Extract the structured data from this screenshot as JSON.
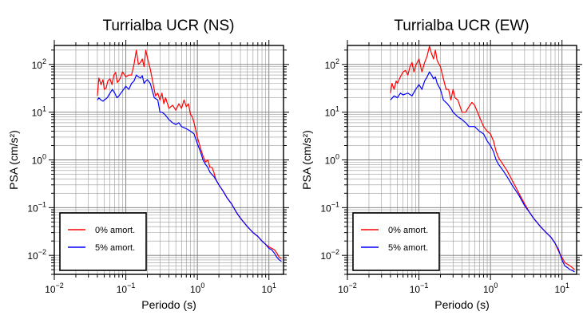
{
  "chart_data": [
    {
      "type": "line",
      "title": "Turrialba UCR (NS)",
      "xlabel": "Periodo (s)",
      "ylabel": "PSA (cm/s²)",
      "xscale": "log",
      "yscale": "log",
      "xlim": [
        0.01,
        16
      ],
      "ylim": [
        0.004,
        250
      ],
      "grid": true,
      "legend_position": "bottom-left",
      "x_ticks": [
        {
          "value": 0.01,
          "base": "10",
          "exp": "−2"
        },
        {
          "value": 0.1,
          "base": "10",
          "exp": "−1"
        },
        {
          "value": 1,
          "base": "10",
          "exp": "0"
        },
        {
          "value": 10,
          "base": "10",
          "exp": "1"
        }
      ],
      "y_ticks": [
        {
          "value": 0.01,
          "base": "10",
          "exp": "−2"
        },
        {
          "value": 0.1,
          "base": "10",
          "exp": "−1"
        },
        {
          "value": 1,
          "base": "10",
          "exp": "0"
        },
        {
          "value": 10,
          "base": "10",
          "exp": "1"
        },
        {
          "value": 100,
          "base": "10",
          "exp": "2"
        }
      ],
      "series": [
        {
          "name": "0% amort.",
          "color": "#ff0000",
          "points": [
            [
              0.04,
              22
            ],
            [
              0.042,
              52
            ],
            [
              0.045,
              38
            ],
            [
              0.048,
              48
            ],
            [
              0.05,
              30
            ],
            [
              0.053,
              32
            ],
            [
              0.056,
              45
            ],
            [
              0.06,
              50
            ],
            [
              0.064,
              38
            ],
            [
              0.068,
              60
            ],
            [
              0.072,
              68
            ],
            [
              0.076,
              42
            ],
            [
              0.08,
              46
            ],
            [
              0.085,
              55
            ],
            [
              0.09,
              70
            ],
            [
              0.1,
              55
            ],
            [
              0.11,
              60
            ],
            [
              0.12,
              60
            ],
            [
              0.13,
              100
            ],
            [
              0.14,
              200
            ],
            [
              0.15,
              100
            ],
            [
              0.16,
              110
            ],
            [
              0.17,
              130
            ],
            [
              0.18,
              90
            ],
            [
              0.19,
              200
            ],
            [
              0.2,
              140
            ],
            [
              0.22,
              80
            ],
            [
              0.24,
              40
            ],
            [
              0.26,
              22
            ],
            [
              0.28,
              25
            ],
            [
              0.3,
              18
            ],
            [
              0.32,
              25
            ],
            [
              0.34,
              15
            ],
            [
              0.36,
              20
            ],
            [
              0.4,
              12
            ],
            [
              0.45,
              14
            ],
            [
              0.5,
              11
            ],
            [
              0.55,
              15
            ],
            [
              0.6,
              12
            ],
            [
              0.65,
              18
            ],
            [
              0.7,
              13
            ],
            [
              0.75,
              15
            ],
            [
              0.8,
              9
            ],
            [
              0.85,
              8
            ],
            [
              0.9,
              6
            ],
            [
              1.0,
              3
            ],
            [
              1.1,
              1.8
            ],
            [
              1.2,
              1.2
            ],
            [
              1.3,
              0.9
            ],
            [
              1.4,
              1.0
            ],
            [
              1.5,
              0.7
            ],
            [
              1.6,
              0.7
            ],
            [
              1.7,
              0.55
            ],
            [
              1.8,
              0.4
            ],
            [
              2.0,
              0.3
            ],
            [
              2.3,
              0.22
            ],
            [
              2.6,
              0.16
            ],
            [
              3.0,
              0.12
            ],
            [
              3.5,
              0.08
            ],
            [
              4.0,
              0.06
            ],
            [
              5.0,
              0.04
            ],
            [
              6.0,
              0.03
            ],
            [
              7.0,
              0.025
            ],
            [
              8.0,
              0.02
            ],
            [
              9.0,
              0.017
            ],
            [
              10,
              0.015
            ],
            [
              11,
              0.014
            ],
            [
              12,
              0.013
            ],
            [
              13,
              0.011
            ],
            [
              14,
              0.009
            ],
            [
              15,
              0.0085
            ]
          ]
        },
        {
          "name": "5% amort.",
          "color": "#0000ff",
          "points": [
            [
              0.04,
              18
            ],
            [
              0.042,
              20
            ],
            [
              0.045,
              18
            ],
            [
              0.048,
              17
            ],
            [
              0.05,
              18
            ],
            [
              0.055,
              20
            ],
            [
              0.06,
              25
            ],
            [
              0.065,
              30
            ],
            [
              0.07,
              25
            ],
            [
              0.075,
              20
            ],
            [
              0.08,
              22
            ],
            [
              0.09,
              28
            ],
            [
              0.1,
              35
            ],
            [
              0.11,
              30
            ],
            [
              0.12,
              40
            ],
            [
              0.13,
              45
            ],
            [
              0.14,
              60
            ],
            [
              0.15,
              55
            ],
            [
              0.16,
              52
            ],
            [
              0.17,
              58
            ],
            [
              0.18,
              40
            ],
            [
              0.19,
              45
            ],
            [
              0.2,
              48
            ],
            [
              0.22,
              40
            ],
            [
              0.25,
              20
            ],
            [
              0.28,
              18
            ],
            [
              0.3,
              10
            ],
            [
              0.32,
              10
            ],
            [
              0.35,
              9
            ],
            [
              0.4,
              7
            ],
            [
              0.45,
              6
            ],
            [
              0.5,
              5.5
            ],
            [
              0.55,
              6
            ],
            [
              0.6,
              5
            ],
            [
              0.7,
              4.5
            ],
            [
              0.8,
              4
            ],
            [
              0.9,
              3.5
            ],
            [
              1.0,
              2.2
            ],
            [
              1.1,
              1.5
            ],
            [
              1.2,
              1.0
            ],
            [
              1.3,
              0.8
            ],
            [
              1.4,
              0.7
            ],
            [
              1.5,
              0.55
            ],
            [
              1.7,
              0.45
            ],
            [
              2.0,
              0.3
            ],
            [
              2.3,
              0.22
            ],
            [
              2.6,
              0.16
            ],
            [
              3.0,
              0.12
            ],
            [
              3.5,
              0.08
            ],
            [
              4.0,
              0.06
            ],
            [
              5.0,
              0.04
            ],
            [
              6.0,
              0.03
            ],
            [
              7.0,
              0.025
            ],
            [
              8.0,
              0.02
            ],
            [
              9.0,
              0.017
            ],
            [
              10,
              0.014
            ],
            [
              11,
              0.013
            ],
            [
              12,
              0.011
            ],
            [
              13,
              0.009
            ],
            [
              14,
              0.008
            ],
            [
              15,
              0.0075
            ]
          ]
        }
      ]
    },
    {
      "type": "line",
      "title": "Turrialba UCR (EW)",
      "xlabel": "Periodo (s)",
      "ylabel": "PSA (cm/s²)",
      "xscale": "log",
      "yscale": "log",
      "xlim": [
        0.01,
        16
      ],
      "ylim": [
        0.004,
        250
      ],
      "grid": true,
      "legend_position": "bottom-left",
      "x_ticks": [
        {
          "value": 0.01,
          "base": "10",
          "exp": "−2"
        },
        {
          "value": 0.1,
          "base": "10",
          "exp": "−1"
        },
        {
          "value": 1,
          "base": "10",
          "exp": "0"
        },
        {
          "value": 10,
          "base": "10",
          "exp": "1"
        }
      ],
      "y_ticks": [
        {
          "value": 0.01,
          "base": "10",
          "exp": "−2"
        },
        {
          "value": 0.1,
          "base": "10",
          "exp": "−1"
        },
        {
          "value": 1,
          "base": "10",
          "exp": "0"
        },
        {
          "value": 10,
          "base": "10",
          "exp": "1"
        },
        {
          "value": 100,
          "base": "10",
          "exp": "2"
        }
      ],
      "series": [
        {
          "name": "0% amort.",
          "color": "#ff0000",
          "points": [
            [
              0.04,
              25
            ],
            [
              0.042,
              40
            ],
            [
              0.045,
              30
            ],
            [
              0.048,
              45
            ],
            [
              0.05,
              40
            ],
            [
              0.055,
              55
            ],
            [
              0.06,
              70
            ],
            [
              0.065,
              75
            ],
            [
              0.07,
              60
            ],
            [
              0.075,
              90
            ],
            [
              0.08,
              110
            ],
            [
              0.085,
              70
            ],
            [
              0.09,
              95
            ],
            [
              0.1,
              130
            ],
            [
              0.11,
              70
            ],
            [
              0.12,
              110
            ],
            [
              0.13,
              150
            ],
            [
              0.14,
              240
            ],
            [
              0.15,
              170
            ],
            [
              0.16,
              130
            ],
            [
              0.17,
              200
            ],
            [
              0.18,
              120
            ],
            [
              0.2,
              90
            ],
            [
              0.22,
              50
            ],
            [
              0.24,
              30
            ],
            [
              0.26,
              30
            ],
            [
              0.28,
              18
            ],
            [
              0.3,
              30
            ],
            [
              0.32,
              20
            ],
            [
              0.35,
              18
            ],
            [
              0.4,
              10
            ],
            [
              0.45,
              10
            ],
            [
              0.5,
              13
            ],
            [
              0.55,
              16
            ],
            [
              0.6,
              14
            ],
            [
              0.7,
              8
            ],
            [
              0.8,
              5
            ],
            [
              0.9,
              4
            ],
            [
              1.0,
              3.5
            ],
            [
              1.1,
              2.5
            ],
            [
              1.2,
              1.5
            ],
            [
              1.3,
              1.1
            ],
            [
              1.5,
              0.8
            ],
            [
              1.7,
              0.6
            ],
            [
              2.0,
              0.38
            ],
            [
              2.5,
              0.2
            ],
            [
              3.0,
              0.12
            ],
            [
              3.5,
              0.08
            ],
            [
              4.0,
              0.06
            ],
            [
              5.0,
              0.04
            ],
            [
              6.0,
              0.03
            ],
            [
              7.0,
              0.024
            ],
            [
              8.0,
              0.018
            ],
            [
              9.0,
              0.012
            ],
            [
              10,
              0.009
            ],
            [
              11,
              0.007
            ],
            [
              12,
              0.0065
            ],
            [
              13,
              0.006
            ],
            [
              14,
              0.0055
            ],
            [
              15,
              0.005
            ]
          ]
        },
        {
          "name": "5% amort.",
          "color": "#0000ff",
          "points": [
            [
              0.04,
              18
            ],
            [
              0.045,
              22
            ],
            [
              0.05,
              20
            ],
            [
              0.055,
              25
            ],
            [
              0.06,
              23
            ],
            [
              0.07,
              25
            ],
            [
              0.08,
              22
            ],
            [
              0.09,
              30
            ],
            [
              0.1,
              38
            ],
            [
              0.11,
              30
            ],
            [
              0.12,
              45
            ],
            [
              0.13,
              55
            ],
            [
              0.14,
              70
            ],
            [
              0.15,
              60
            ],
            [
              0.16,
              50
            ],
            [
              0.17,
              55
            ],
            [
              0.18,
              40
            ],
            [
              0.2,
              30
            ],
            [
              0.22,
              18
            ],
            [
              0.25,
              15
            ],
            [
              0.28,
              12
            ],
            [
              0.3,
              10
            ],
            [
              0.35,
              8
            ],
            [
              0.4,
              7
            ],
            [
              0.45,
              6
            ],
            [
              0.5,
              5
            ],
            [
              0.6,
              5
            ],
            [
              0.7,
              4
            ],
            [
              0.8,
              3.5
            ],
            [
              0.9,
              2.5
            ],
            [
              1.0,
              2.0
            ],
            [
              1.1,
              1.5
            ],
            [
              1.2,
              1.0
            ],
            [
              1.3,
              0.8
            ],
            [
              1.5,
              0.6
            ],
            [
              1.7,
              0.45
            ],
            [
              2.0,
              0.3
            ],
            [
              2.5,
              0.18
            ],
            [
              3.0,
              0.11
            ],
            [
              3.5,
              0.08
            ],
            [
              4.0,
              0.06
            ],
            [
              5.0,
              0.04
            ],
            [
              6.0,
              0.03
            ],
            [
              7.0,
              0.024
            ],
            [
              8.0,
              0.018
            ],
            [
              9.0,
              0.013
            ],
            [
              10,
              0.008
            ],
            [
              11,
              0.006
            ],
            [
              12,
              0.0055
            ],
            [
              13,
              0.005
            ],
            [
              14,
              0.0048
            ],
            [
              15,
              0.0045
            ]
          ]
        }
      ]
    }
  ]
}
